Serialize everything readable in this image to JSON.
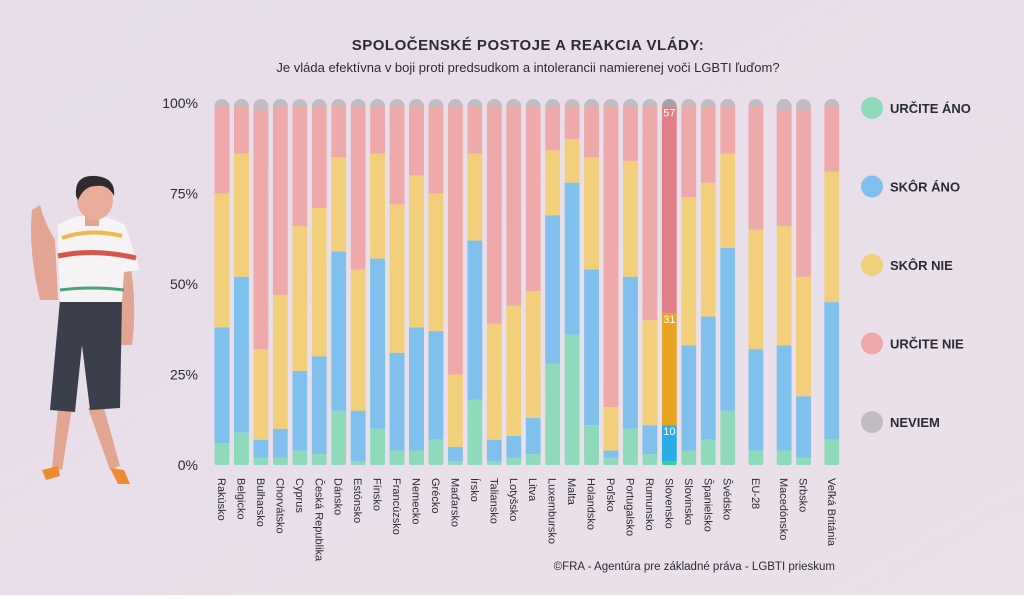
{
  "chart_data": {
    "type": "stacked_bar",
    "title": "SPOLOČENSKÉ POSTOJE A REAKCIA VLÁDY:",
    "subtitle": "Je vláda efektívna v boji proti predsudkom a intolerancii namierenej voči LGBTI ľuďom?",
    "source": "©FRA - Agentúra pre základné práva - LGBTI prieskum",
    "categories": [
      "Rakúsko",
      "Belgicko",
      "Bulharsko",
      "Chorvátsko",
      "Cyprus",
      "Česká Republika",
      "Dánsko",
      "Estónsko",
      "Fínsko",
      "Francúzsko",
      "Nemecko",
      "Grécko",
      "Maďarsko",
      "Írsko",
      "Taliansko",
      "Lotyšsko",
      "Litva",
      "Luxembursko",
      "Malta",
      "Holandsko",
      "Poľsko",
      "Portugalsko",
      "Rumunsko",
      "Slovensko",
      "Slovinsko",
      "Španielsko",
      "Švédsko",
      null,
      "EU-28",
      null,
      "Macedónsko",
      "Srbsko",
      null,
      "Veľká Británia"
    ],
    "highlight": "Slovensko",
    "series": [
      {
        "name": "URČITE ÁNO",
        "color": "#8fdabb",
        "highlight_color": "#3ccf95",
        "values": [
          6,
          9,
          2,
          2,
          4,
          3,
          15,
          1,
          10,
          4,
          4,
          7,
          1,
          18,
          1,
          2,
          3,
          28,
          36,
          11,
          2,
          10,
          3,
          1,
          4,
          7,
          15,
          null,
          4,
          null,
          4,
          2,
          null,
          7
        ]
      },
      {
        "name": "SKÔR ÁNO",
        "color": "#80c0ec",
        "highlight_color": "#29ade6",
        "values": [
          32,
          43,
          5,
          8,
          22,
          27,
          44,
          14,
          47,
          27,
          34,
          30,
          4,
          44,
          6,
          6,
          10,
          41,
          42,
          43,
          2,
          42,
          8,
          10,
          29,
          34,
          45,
          null,
          28,
          null,
          29,
          17,
          null,
          38
        ]
      },
      {
        "name": "SKÔR NIE",
        "color": "#f2cf7b",
        "highlight_color": "#eba421",
        "values": [
          37,
          34,
          25,
          37,
          40,
          41,
          26,
          39,
          29,
          41,
          42,
          38,
          20,
          24,
          32,
          36,
          35,
          18,
          12,
          31,
          12,
          32,
          29,
          31,
          41,
          37,
          26,
          null,
          33,
          null,
          33,
          33,
          null,
          36
        ]
      },
      {
        "name": "URČITE NIE",
        "color": "#eeaaab",
        "highlight_color": "#df7f87",
        "values": [
          24,
          13,
          66,
          52,
          33,
          28,
          14,
          45,
          13,
          27,
          19,
          24,
          74,
          13,
          60,
          55,
          51,
          12,
          9,
          14,
          83,
          15,
          59,
          57,
          25,
          21,
          13,
          null,
          34,
          null,
          32,
          46,
          null,
          18
        ]
      },
      {
        "name": "NEVIEM",
        "color": "#c2bbc2",
        "highlight_color": "#a9a1a9",
        "values": [
          1,
          1,
          2,
          1,
          1,
          1,
          1,
          1,
          1,
          1,
          1,
          1,
          1,
          1,
          1,
          1,
          1,
          1,
          1,
          1,
          1,
          1,
          1,
          1,
          1,
          1,
          1,
          null,
          1,
          null,
          2,
          2,
          null,
          1
        ]
      }
    ],
    "ylim": [
      0,
      100
    ],
    "yticks": [
      {
        "value": 0,
        "label": "0%"
      },
      {
        "value": 25,
        "label": "25%"
      },
      {
        "value": 50,
        "label": "50%"
      },
      {
        "value": 75,
        "label": "75%"
      },
      {
        "value": 100,
        "label": "100%"
      }
    ],
    "grid": false,
    "legend": "right"
  }
}
